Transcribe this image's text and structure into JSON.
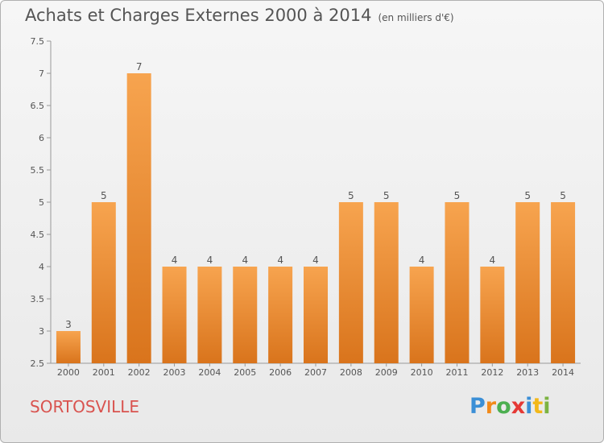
{
  "header": {
    "title": "Achats et Charges Externes 2000 à 2014",
    "subtitle": "(en milliers d'€)"
  },
  "footer": {
    "city": "SORTOSVILLE",
    "logo_text": "Proxiti",
    "logo_letters": [
      "P",
      "r",
      "o",
      "x",
      "i",
      "t",
      "i"
    ]
  },
  "colors": {
    "bar_top": "#f7a44f",
    "bar_bottom": "#d9741c",
    "city": "#d9534f",
    "axis": "#999999"
  },
  "chart_data": {
    "type": "bar",
    "title": "Achats et Charges Externes 2000 à 2014",
    "subtitle": "(en milliers d'€)",
    "categories": [
      "2000",
      "2001",
      "2002",
      "2003",
      "2004",
      "2005",
      "2006",
      "2007",
      "2008",
      "2009",
      "2010",
      "2011",
      "2012",
      "2013",
      "2014"
    ],
    "values": [
      3,
      5,
      7,
      4,
      4,
      4,
      4,
      4,
      5,
      5,
      4,
      5,
      4,
      5,
      5
    ],
    "data_labels": [
      "3",
      "5",
      "7",
      "4",
      "4",
      "4",
      "4",
      "4",
      "5",
      "5",
      "4",
      "5",
      "4",
      "5",
      "5"
    ],
    "ylim": [
      2.5,
      7.5
    ],
    "yticks": [
      "2.5",
      "3",
      "3.5",
      "4",
      "4.5",
      "5",
      "5.5",
      "6",
      "6.5",
      "7",
      "7.5"
    ],
    "grid": false,
    "legend": "none"
  }
}
